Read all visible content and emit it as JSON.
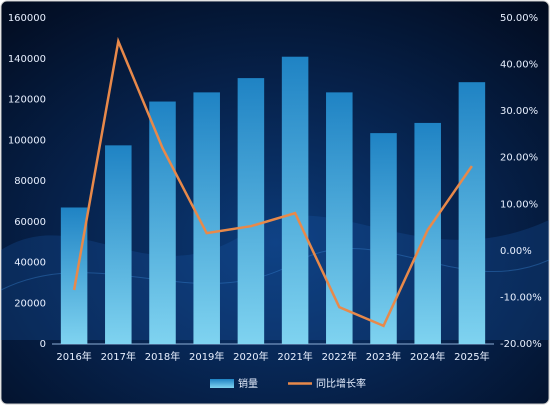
{
  "chart_data": {
    "type": "bar-line",
    "categories": [
      "2016年",
      "2017年",
      "2018年",
      "2019年",
      "2020年",
      "2021年",
      "2022年",
      "2023年",
      "2024年",
      "2025年"
    ],
    "series": [
      {
        "name": "销量",
        "type": "bar",
        "color": "#2f9fd6",
        "values": [
          67000,
          97500,
          119000,
          123500,
          130500,
          141000,
          123500,
          103500,
          108500,
          128500
        ]
      },
      {
        "name": "同比增长率",
        "type": "line",
        "axis": "y2",
        "color": "#e8894a",
        "values": [
          -8.4,
          45,
          22.1,
          3.8,
          5.3,
          8.1,
          -12.1,
          -16.1,
          4.5,
          18.2
        ]
      }
    ],
    "ylim": [
      0,
      160000
    ],
    "yticks": [
      0,
      20000,
      40000,
      60000,
      80000,
      100000,
      120000,
      140000,
      160000
    ],
    "y2lim": [
      -20,
      50
    ],
    "y2ticks": [
      {
        "value": -20,
        "label": "-20.00%"
      },
      {
        "value": -10,
        "label": "-10.00%"
      },
      {
        "value": 0,
        "label": "0.00%"
      },
      {
        "value": 10,
        "label": "10.00%"
      },
      {
        "value": 20,
        "label": "20.00%"
      },
      {
        "value": 30,
        "label": "30.00%"
      },
      {
        "value": 40,
        "label": "40.00%"
      },
      {
        "value": 50,
        "label": "50.00%"
      }
    ],
    "legend": "bottom",
    "grid": false
  }
}
